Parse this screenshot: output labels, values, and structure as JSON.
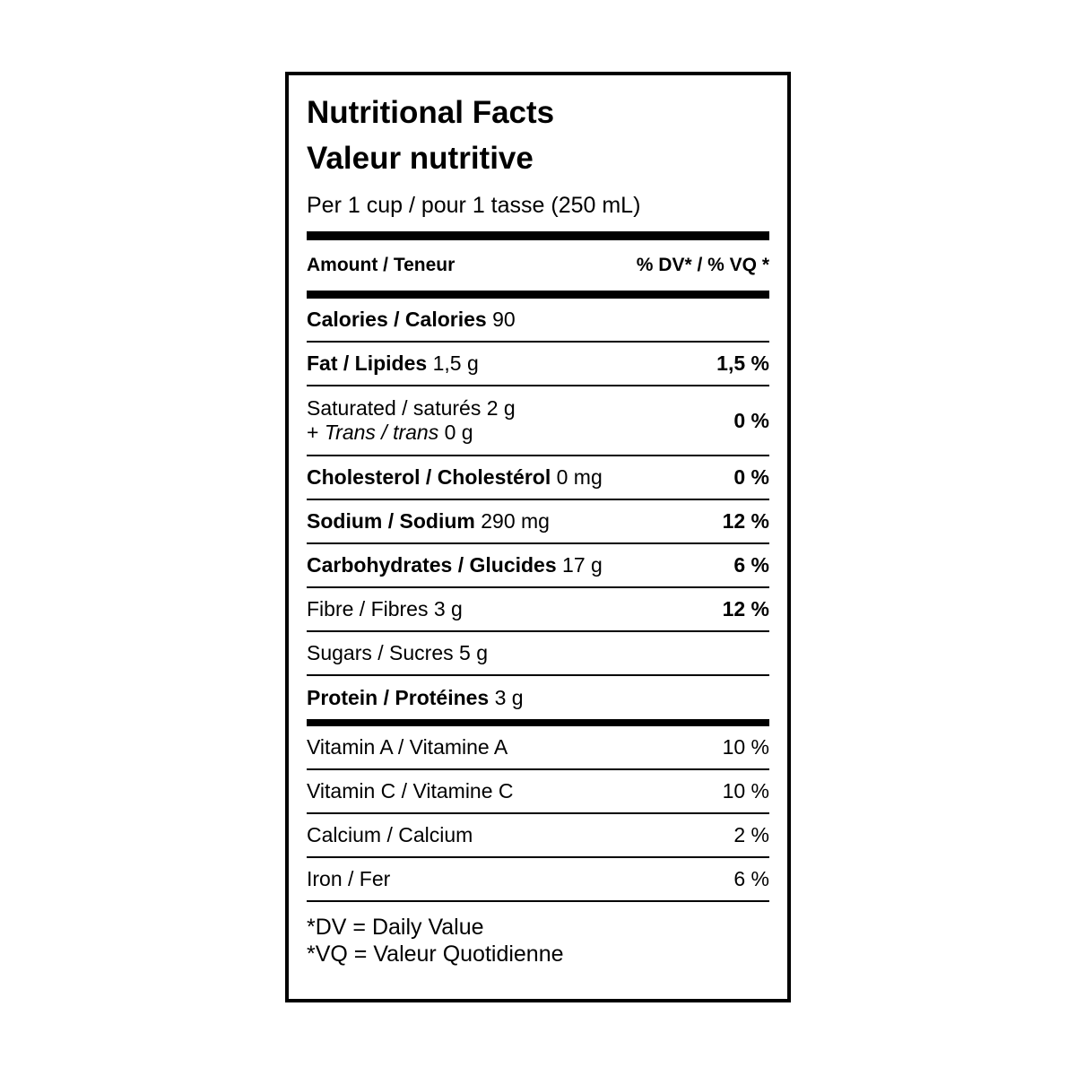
{
  "label": {
    "title_en": "Nutritional Facts",
    "title_fr": "Valeur nutritive",
    "serving": "Per 1 cup / pour 1 tasse (250 mL)",
    "columns": {
      "amount": "Amount / Teneur",
      "daily_value": "% DV* / % VQ *"
    },
    "rows": [
      {
        "name": "Calories / Calories",
        "value": "90",
        "percent": ""
      },
      {
        "name": "Fat / Lipides",
        "value": "1,5 g",
        "percent": "1,5 %"
      },
      {
        "name": "Saturated / saturés",
        "value": "2 g",
        "line2_prefix": "+",
        "line2_italic": "Trans / trans",
        "line2_value": "0 g",
        "percent": "0 %"
      },
      {
        "name": "Cholesterol / Cholestérol",
        "value": "0 mg",
        "percent": "0 %"
      },
      {
        "name": "Sodium / Sodium",
        "value": "290 mg",
        "percent": "12 %"
      },
      {
        "name": "Carbohydrates / Glucides",
        "value": "17 g",
        "percent": "6 %"
      },
      {
        "name": "Fibre / Fibres",
        "value": "3 g",
        "percent": "12 %"
      },
      {
        "name": "Sugars / Sucres",
        "value": "5 g",
        "percent": ""
      },
      {
        "name": "Protein / Protéines",
        "value": "3 g",
        "percent": ""
      },
      {
        "name": "Vitamin A / Vitamine A",
        "value": "",
        "percent": "10 %"
      },
      {
        "name": "Vitamin C / Vitamine C",
        "value": "",
        "percent": "10 %"
      },
      {
        "name": "Calcium / Calcium",
        "value": "",
        "percent": "2 %"
      },
      {
        "name": "Iron / Fer",
        "value": "",
        "percent": "6 %"
      }
    ],
    "footnotes": {
      "dv": "*DV = Daily Value",
      "vq": "*VQ = Valeur Quotidienne"
    },
    "colors": {
      "text": "#000000",
      "background": "#ffffff",
      "border": "#000000"
    }
  }
}
